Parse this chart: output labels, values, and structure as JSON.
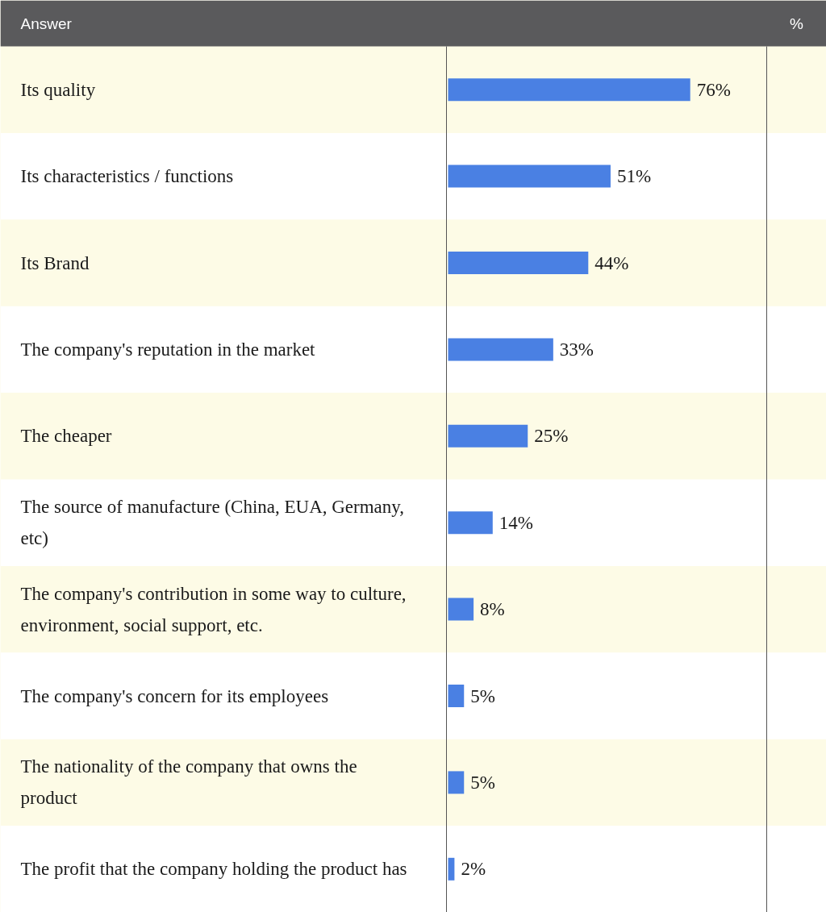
{
  "chart_data": {
    "type": "bar",
    "orientation": "horizontal",
    "ylabel": "Answer",
    "annotations": [
      "%"
    ],
    "categories": [
      "Its quality",
      "Its characteristics / functions",
      "Its Brand",
      "The company's reputation in the market",
      "The cheaper",
      "The source of manufacture (China, EUA, Germany, etc)",
      "The company's contribution in some way to culture, environment, social support, etc.",
      "The company's concern for its employees",
      "The nationality of the company that owns the product",
      "The profit that the company holding the product has"
    ],
    "values": [
      76,
      51,
      44,
      33,
      25,
      14,
      8,
      5,
      5,
      2
    ],
    "value_labels": [
      "76%",
      "51%",
      "44%",
      "33%",
      "25%",
      "14%",
      "8%",
      "5%",
      "5%",
      "2%"
    ],
    "color": "#4a80e3",
    "xlim": [
      0,
      100
    ],
    "tick_labels": false,
    "grid": false
  }
}
